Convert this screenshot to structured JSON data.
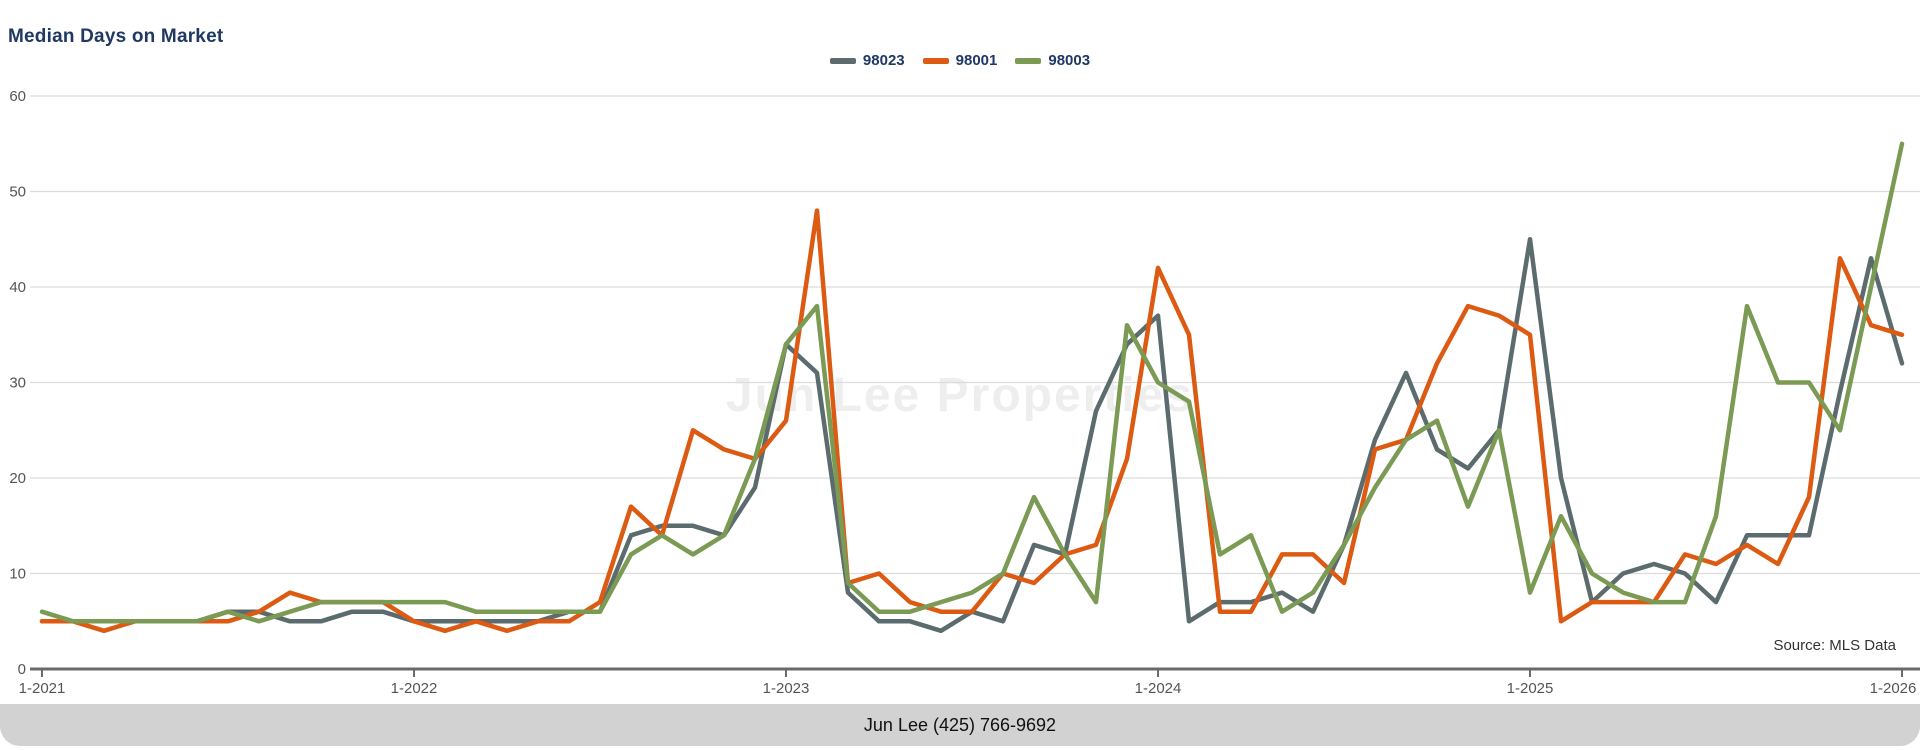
{
  "title": "Median Days on Market",
  "watermark": "Jun Lee Properties",
  "source_note": "Source: MLS Data",
  "footer": "Jun Lee (425) 766-9692",
  "colors": {
    "title": "#1F3864",
    "axis": "#6a6a6a",
    "gridline": "#dcdcdc",
    "tick_label": "#555555",
    "footer_bg": "#d2d2d2",
    "series_98023": "#5B6B6E",
    "series_98001": "#DC5A12",
    "series_98003": "#7B9A54"
  },
  "legend": [
    {
      "label": "98023",
      "color": "#5B6B6E"
    },
    {
      "label": "98001",
      "color": "#DC5A12"
    },
    {
      "label": "98003",
      "color": "#7B9A54"
    }
  ],
  "chart_data": {
    "type": "line",
    "title": "Median Days on Market",
    "xlabel": "",
    "ylabel": "",
    "x_unit": "month",
    "x_start": "1-2021",
    "x_end": "1-2026",
    "n_points": 61,
    "x_tick_labels": [
      "1-2021",
      "1-2022",
      "1-2023",
      "1-2024",
      "1-2025",
      "1-2026"
    ],
    "x_tick_indices": [
      0,
      12,
      24,
      36,
      48,
      60
    ],
    "y_ticks": [
      0,
      10,
      20,
      30,
      40,
      50,
      60
    ],
    "ylim": [
      0,
      60
    ],
    "grid": "horizontal",
    "legend_position": "top-center",
    "series": [
      {
        "name": "98023",
        "color": "#5B6B6E",
        "values": [
          5,
          5,
          5,
          5,
          5,
          5,
          6,
          6,
          5,
          5,
          6,
          6,
          5,
          5,
          5,
          5,
          5,
          6,
          6,
          14,
          15,
          15,
          14,
          19,
          34,
          31,
          8,
          5,
          5,
          4,
          6,
          5,
          13,
          12,
          27,
          34,
          37,
          5,
          7,
          7,
          8,
          6,
          13,
          24,
          31,
          23,
          21,
          25,
          45,
          20,
          7,
          10,
          11,
          10,
          7,
          14,
          14,
          14,
          29,
          43,
          32
        ]
      },
      {
        "name": "98001",
        "color": "#DC5A12",
        "values": [
          5,
          5,
          4,
          5,
          5,
          5,
          5,
          6,
          8,
          7,
          7,
          7,
          5,
          4,
          5,
          4,
          5,
          5,
          7,
          17,
          14,
          25,
          23,
          22,
          26,
          48,
          9,
          10,
          7,
          6,
          6,
          10,
          9,
          12,
          13,
          22,
          42,
          35,
          6,
          6,
          12,
          12,
          9,
          23,
          24,
          32,
          38,
          37,
          35,
          5,
          7,
          7,
          7,
          12,
          11,
          13,
          11,
          18,
          43,
          36,
          35
        ]
      },
      {
        "name": "98003",
        "color": "#7B9A54",
        "values": [
          6,
          5,
          5,
          5,
          5,
          5,
          6,
          5,
          6,
          7,
          7,
          7,
          7,
          7,
          6,
          6,
          6,
          6,
          6,
          12,
          14,
          12,
          14,
          22,
          34,
          38,
          9,
          6,
          6,
          7,
          8,
          10,
          18,
          12,
          7,
          36,
          30,
          28,
          12,
          14,
          6,
          8,
          13,
          19,
          24,
          26,
          17,
          25,
          8,
          16,
          10,
          8,
          7,
          7,
          16,
          38,
          30,
          30,
          25,
          40,
          55
        ]
      }
    ]
  }
}
